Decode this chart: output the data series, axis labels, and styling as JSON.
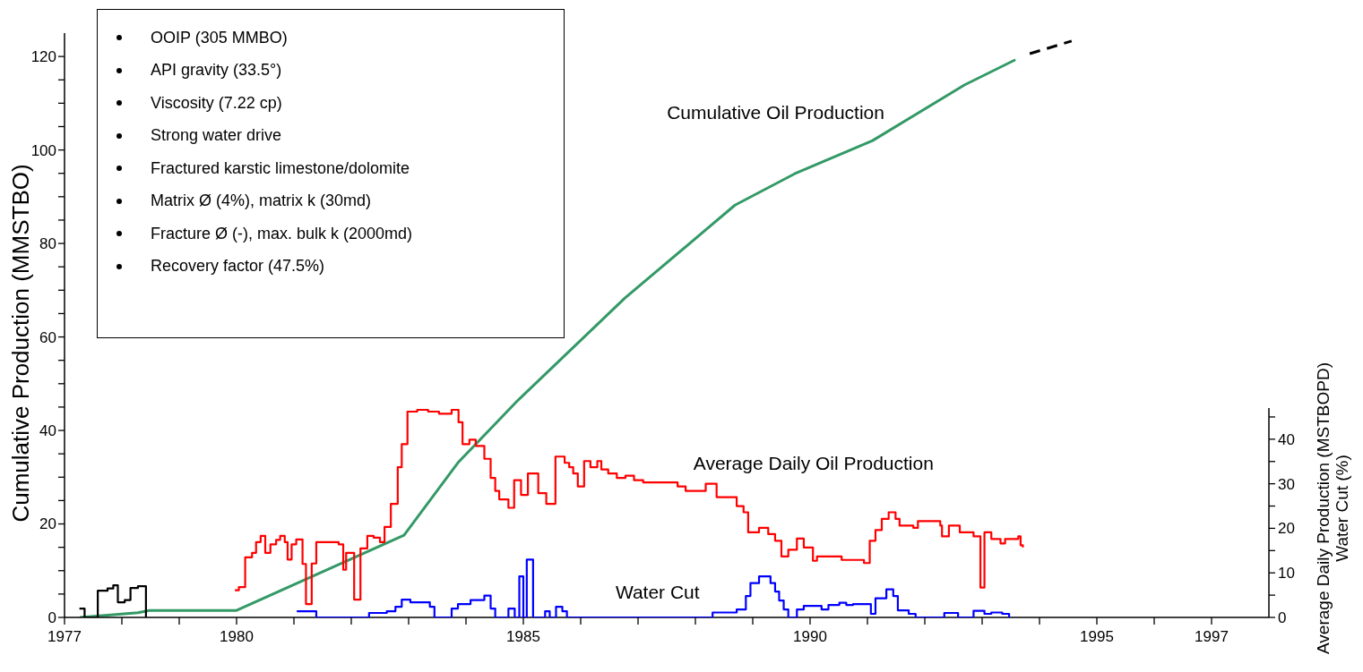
{
  "chart_data": {
    "type": "line",
    "ylabel": "Cumulative Production (MMSTBO)",
    "y2label": "Average Daily Production (MSTBOPD)\nWater Cut (%)",
    "annotations": [
      "OOIP (305 MMBO)",
      "API gravity (33.5°)",
      "Viscosity (7.22 cp)",
      "Strong water drive",
      "Fractured karstic limestone/dolomite",
      "Matrix Ø (4%), matrix k (30md)",
      "Fracture Ø (-), max. bulk k (2000md)",
      "Recovery factor (47.5%)"
    ],
    "xlim": [
      1977,
      1998
    ],
    "xticks": [
      1977,
      {
        "value": 1978,
        "label": null
      },
      {
        "value": 1979,
        "label": null
      },
      1980,
      {
        "value": 1981,
        "label": null
      },
      {
        "value": 1982,
        "label": null
      },
      {
        "value": 1983,
        "label": null
      },
      {
        "value": 1984,
        "label": null
      },
      1985,
      {
        "value": 1986,
        "label": null
      },
      {
        "value": 1987,
        "label": null
      },
      {
        "value": 1988,
        "label": null
      },
      {
        "value": 1989,
        "label": null
      },
      1990,
      {
        "value": 1991,
        "label": null
      },
      {
        "value": 1992,
        "label": null
      },
      {
        "value": 1993,
        "label": null
      },
      {
        "value": 1994,
        "label": null
      },
      1995,
      {
        "value": 1996,
        "label": null
      },
      1997
    ],
    "ylim": [
      0,
      125
    ],
    "yticks": [
      0,
      {
        "value": 5,
        "label": null
      },
      {
        "value": 10,
        "label": null
      },
      {
        "value": 15,
        "label": null
      },
      20,
      {
        "value": 25,
        "label": null
      },
      {
        "value": 30,
        "label": null
      },
      {
        "value": 35,
        "label": null
      },
      40,
      {
        "value": 45,
        "label": null
      },
      {
        "value": 50,
        "label": null
      },
      {
        "value": 55,
        "label": null
      },
      60,
      {
        "value": 65,
        "label": null
      },
      {
        "value": 70,
        "label": null
      },
      {
        "value": 75,
        "label": null
      },
      80,
      {
        "value": 85,
        "label": null
      },
      {
        "value": 90,
        "label": null
      },
      {
        "value": 95,
        "label": null
      },
      100,
      {
        "value": 105,
        "label": null
      },
      {
        "value": 110,
        "label": null
      },
      {
        "value": 115,
        "label": null
      },
      120
    ],
    "y2lim": [
      0,
      47
    ],
    "y2ticks": [
      0,
      {
        "value": 5,
        "label": null
      },
      10,
      {
        "value": 15,
        "label": null
      },
      20,
      {
        "value": 25,
        "label": null
      },
      30,
      {
        "value": 35,
        "label": null
      },
      40,
      {
        "value": 45,
        "label": null
      }
    ],
    "series": [
      {
        "name": "Cumulative Oil Production",
        "type": "line",
        "color": "#339966",
        "x": [
          1977.27,
          1978.28,
          1978.48,
          1980.0,
          1982.92,
          1983.86,
          1984.91,
          1986.77,
          1988.69,
          1989.73,
          1991.09,
          1992.69,
          1993.58
        ],
        "values": [
          0,
          1.0,
          1.5,
          1.5,
          17.6,
          33.1,
          46.5,
          68.3,
          88.2,
          94.9,
          102.0,
          113.9,
          119.3
        ]
      },
      {
        "type": "line",
        "line_style": "dashed",
        "color": "#000000",
        "x": [
          1993.83,
          1994.56
        ],
        "values": [
          120.6,
          123.3
        ]
      },
      {
        "type": "step",
        "axis": "y2",
        "color": "#000000",
        "x": [
          1977.26,
          1977.35,
          1977.58,
          1977.75,
          1977.85,
          1977.93,
          1978.05,
          1978.15,
          1978.28,
          1978.42
        ],
        "values": [
          2.0,
          0,
          6.0,
          6.5,
          7.2,
          3.4,
          3.9,
          6.6,
          7.0,
          0
        ]
      },
      {
        "name": "Average Daily Oil Production",
        "type": "step",
        "axis": "y2",
        "color": "#ff0000",
        "x": [
          1979.97,
          1980.04,
          1980.15,
          1980.27,
          1980.34,
          1980.42,
          1980.5,
          1980.59,
          1980.69,
          1980.76,
          1980.84,
          1980.89,
          1980.96,
          1981.04,
          1981.15,
          1981.21,
          1981.31,
          1981.39,
          1981.78,
          1981.86,
          1981.91,
          1982.03,
          1982.05,
          1982.16,
          1982.28,
          1982.39,
          1982.5,
          1982.58,
          1982.69,
          1982.81,
          1982.88,
          1982.98,
          1983.15,
          1983.34,
          1983.53,
          1983.75,
          1983.87,
          1983.94,
          1984.06,
          1984.17,
          1984.32,
          1984.43,
          1984.51,
          1984.58,
          1984.74,
          1984.84,
          1984.96,
          1985.08,
          1985.26,
          1985.4,
          1985.56,
          1985.72,
          1985.8,
          1985.87,
          1985.95,
          1986.06,
          1986.17,
          1986.29,
          1986.36,
          1986.48,
          1986.63,
          1986.78,
          1986.93,
          1987.09,
          1987.39,
          1987.69,
          1987.83,
          1988.18,
          1988.37,
          1988.72,
          1988.84,
          1988.92,
          1989.11,
          1989.27,
          1989.39,
          1989.5,
          1989.62,
          1989.77,
          1989.89,
          1990.05,
          1990.12,
          1990.55,
          1990.94,
          1991.04,
          1991.14,
          1991.25,
          1991.37,
          1991.49,
          1991.56,
          1991.8,
          1991.88,
          1992.03,
          1992.27,
          1992.3,
          1992.42,
          1992.61,
          1992.85,
          1992.97,
          1993.04,
          1993.16,
          1993.32,
          1993.4,
          1993.63,
          1993.67,
          1993.71
        ],
        "values": [
          6.1,
          6.8,
          13.5,
          14.5,
          16.9,
          18.3,
          14.5,
          16.4,
          17.4,
          18.3,
          16.9,
          13.0,
          16.4,
          17.5,
          12.0,
          3.0,
          12.1,
          16.9,
          16.4,
          10.7,
          14.5,
          14.5,
          4.0,
          15.5,
          18.3,
          17.9,
          16.9,
          20.3,
          25.5,
          33.7,
          38.9,
          46.2,
          46.6,
          46.2,
          45.7,
          46.6,
          43.8,
          38.9,
          39.9,
          38.5,
          35.6,
          31.3,
          28.4,
          26.5,
          24.6,
          30.8,
          27.5,
          32.3,
          27.9,
          25.5,
          36.1,
          34.7,
          33.7,
          32.3,
          29.4,
          35.1,
          33.7,
          35.1,
          33.2,
          32.3,
          31.3,
          31.8,
          30.8,
          30.3,
          30.3,
          29.4,
          28.4,
          30.0,
          27.0,
          25.0,
          23.6,
          19.1,
          20.1,
          18.7,
          17.2,
          13.7,
          15.2,
          17.7,
          15.7,
          12.7,
          13.7,
          12.9,
          12.2,
          17.2,
          19.6,
          22.1,
          23.6,
          22.1,
          20.6,
          20.1,
          21.6,
          21.6,
          20.6,
          18.2,
          20.6,
          19.1,
          18.2,
          6.7,
          19.1,
          17.6,
          16.6,
          17.6,
          18.2,
          16.2,
          15.7
        ]
      },
      {
        "name": "Water Cut",
        "type": "step",
        "axis": "y2",
        "color": "#0000ff",
        "x": [
          1981.05,
          1981.39,
          1982.31,
          1982.62,
          1982.77,
          1982.88,
          1983.03,
          1983.37,
          1983.45,
          1983.75,
          1983.86,
          1984.08,
          1984.32,
          1984.43,
          1984.51,
          1984.74,
          1984.85,
          1984.93,
          1985.0,
          1985.06,
          1985.17,
          1985.38,
          1985.46,
          1985.57,
          1985.68,
          1985.76,
          1988.3,
          1988.72,
          1988.88,
          1988.96,
          1989.11,
          1989.31,
          1989.39,
          1989.46,
          1989.54,
          1989.62,
          1989.77,
          1989.89,
          1990.2,
          1990.32,
          1990.51,
          1990.63,
          1990.75,
          1991.06,
          1991.14,
          1991.33,
          1991.45,
          1991.53,
          1991.72,
          1991.84,
          1992.34,
          1992.58,
          1992.85,
          1993.04,
          1993.16,
          1993.35,
          1993.47
        ],
        "values": [
          1.4,
          0,
          1.0,
          1.4,
          2.4,
          4.0,
          3.4,
          2.4,
          0,
          2.0,
          3.0,
          3.9,
          4.9,
          2.0,
          0,
          2.0,
          0,
          9.2,
          0,
          13.0,
          0,
          1.4,
          0,
          2.4,
          1.4,
          0,
          1.1,
          1.8,
          4.8,
          7.7,
          9.2,
          7.7,
          5.8,
          3.8,
          1.8,
          0,
          1.8,
          2.6,
          1.8,
          2.8,
          3.3,
          2.8,
          3.0,
          0.8,
          4.3,
          6.3,
          4.8,
          1.6,
          0.8,
          0,
          1.0,
          0,
          1.5,
          0.8,
          1.1,
          0.8,
          0
        ]
      }
    ]
  }
}
